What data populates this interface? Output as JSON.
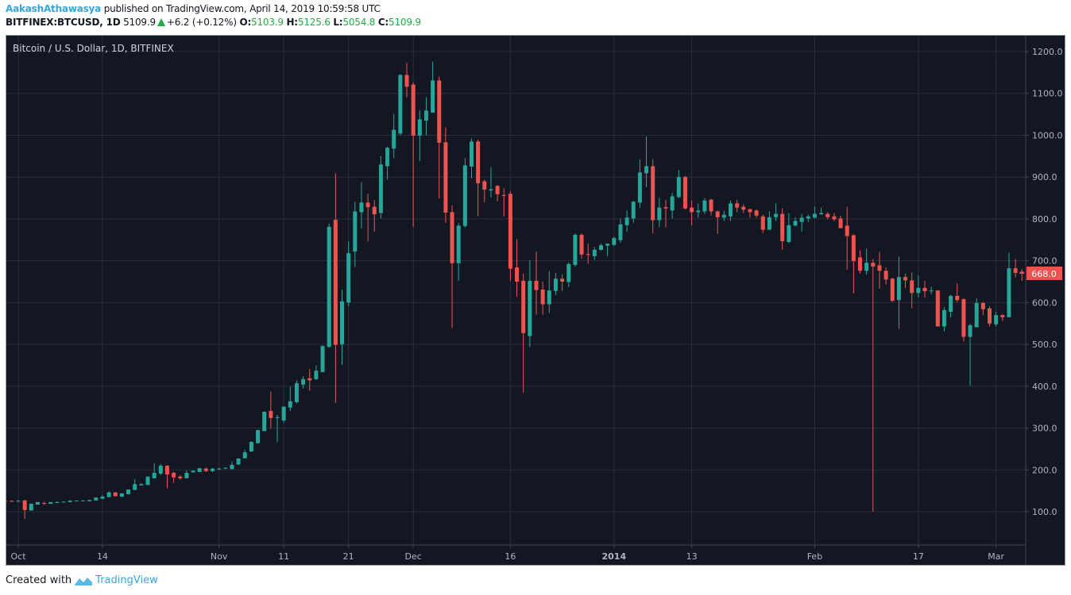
{
  "header": {
    "author": "AakashAthawasya",
    "published": "published on TradingView.com, April 14, 2019 10:59:58 UTC",
    "symbol": "BITFINEX:BTCUSD, 1D",
    "last": "5109.9",
    "change": "+6.2 (+0.12%)",
    "o_label": "O:",
    "o": "5103.9",
    "h_label": "H:",
    "h": "5125.6",
    "l_label": "L:",
    "l": "5054.8",
    "c_label": "C:",
    "c": "5109.9"
  },
  "footer": {
    "created_with": "Created with",
    "brand": "TradingView"
  },
  "colors": {
    "background": "#131722",
    "grid": "#2a2e39",
    "up": "#26a69a",
    "down": "#ef5350",
    "axis_text": "#b2b5be",
    "brand": "#3aa4dc"
  },
  "chart_data": {
    "type": "candlestick",
    "title": "Bitcoin / U.S. Dollar, 1D, BITFINEX",
    "ylim": [
      0,
      1250
    ],
    "yticks": [
      "100.0",
      "200.0",
      "300.0",
      "400.0",
      "500.0",
      "600.0",
      "700.0",
      "800.0",
      "900.0",
      "1000.0",
      "1100.0",
      "1200.0"
    ],
    "last_price_label": "668.0",
    "xticks": [
      {
        "label": "Oct",
        "date": "2013-10-01"
      },
      {
        "label": "14",
        "date": "2013-10-14"
      },
      {
        "label": "Nov",
        "date": "2013-11-01"
      },
      {
        "label": "11",
        "date": "2013-11-11"
      },
      {
        "label": "21",
        "date": "2013-11-21"
      },
      {
        "label": "Dec",
        "date": "2013-12-01"
      },
      {
        "label": "16",
        "date": "2013-12-16"
      },
      {
        "label": "2014",
        "date": "2014-01-01",
        "bold": true
      },
      {
        "label": "13",
        "date": "2014-01-13"
      },
      {
        "label": "Feb",
        "date": "2014-02-01"
      },
      {
        "label": "17",
        "date": "2014-02-17"
      },
      {
        "label": "Mar",
        "date": "2014-03-01"
      }
    ],
    "columns": [
      "date",
      "open",
      "high",
      "low",
      "close"
    ],
    "candles": [
      [
        "2013-09-29",
        126,
        127,
        125,
        125
      ],
      [
        "2013-09-30",
        126,
        126,
        123,
        125
      ],
      [
        "2013-10-01",
        125,
        128,
        124,
        126
      ],
      [
        "2013-10-02",
        127,
        128,
        83,
        104
      ],
      [
        "2013-10-03",
        103,
        119,
        103,
        119
      ],
      [
        "2013-10-04",
        117,
        123,
        117,
        123
      ],
      [
        "2013-10-05",
        121,
        125,
        116,
        120.5
      ],
      [
        "2013-10-06",
        119,
        123,
        119,
        123
      ],
      [
        "2013-10-07",
        121,
        125,
        121,
        123
      ],
      [
        "2013-10-08",
        123,
        124,
        122,
        124
      ],
      [
        "2013-10-09",
        123,
        128,
        123,
        126
      ],
      [
        "2013-10-10",
        126,
        127,
        125,
        126.5
      ],
      [
        "2013-10-11",
        126,
        127,
        125,
        127
      ],
      [
        "2013-10-12",
        125,
        128,
        125,
        128
      ],
      [
        "2013-10-13",
        127,
        134,
        127,
        134
      ],
      [
        "2013-10-14",
        131,
        140,
        131,
        136
      ],
      [
        "2013-10-15",
        135,
        149,
        135,
        146
      ],
      [
        "2013-10-16",
        146,
        147,
        137,
        137
      ],
      [
        "2013-10-17",
        136,
        144,
        135,
        144
      ],
      [
        "2013-10-18",
        142,
        153,
        142,
        153
      ],
      [
        "2013-10-19",
        152,
        178,
        152,
        166
      ],
      [
        "2013-10-20",
        163,
        168,
        163,
        166
      ],
      [
        "2013-10-21",
        164,
        184,
        164,
        184
      ],
      [
        "2013-10-22",
        180,
        216,
        180,
        193
      ],
      [
        "2013-10-23",
        191,
        214,
        188,
        210
      ],
      [
        "2013-10-24",
        210,
        211,
        156,
        189
      ],
      [
        "2013-10-25",
        193,
        195,
        169,
        182
      ],
      [
        "2013-10-26",
        184,
        187,
        177,
        180
      ],
      [
        "2013-10-27",
        180,
        199,
        180,
        193
      ],
      [
        "2013-10-28",
        194,
        199,
        194,
        198
      ],
      [
        "2013-10-29",
        195,
        204,
        195,
        204
      ],
      [
        "2013-10-30",
        203,
        206,
        195,
        197
      ],
      [
        "2013-10-31",
        197,
        205,
        195,
        203
      ],
      [
        "2013-11-01",
        201,
        205,
        201,
        203
      ],
      [
        "2013-11-02",
        203,
        206,
        202,
        205
      ],
      [
        "2013-11-03",
        202,
        220,
        201,
        212
      ],
      [
        "2013-11-04",
        213,
        228,
        212,
        227
      ],
      [
        "2013-11-05",
        228,
        248,
        227,
        242
      ],
      [
        "2013-11-06",
        244,
        268,
        243,
        267
      ],
      [
        "2013-11-07",
        264,
        296,
        263,
        295
      ],
      [
        "2013-11-08",
        293,
        340,
        292,
        339
      ],
      [
        "2013-11-09",
        341,
        387,
        298,
        324
      ],
      [
        "2013-11-10",
        325,
        332,
        266,
        326
      ],
      [
        "2013-11-11",
        318,
        353,
        312,
        351
      ],
      [
        "2013-11-12",
        349,
        399,
        341,
        364
      ],
      [
        "2013-11-13",
        362,
        414,
        359,
        407
      ],
      [
        "2013-11-14",
        404,
        424,
        395,
        417
      ],
      [
        "2013-11-15",
        419,
        441,
        389,
        414
      ],
      [
        "2013-11-16",
        417,
        450,
        415,
        437
      ],
      [
        "2013-11-17",
        434,
        498,
        433,
        496
      ],
      [
        "2013-11-18",
        494,
        789,
        492,
        781
      ],
      [
        "2013-11-19",
        798,
        909,
        360,
        499
      ],
      [
        "2013-11-20",
        500,
        631,
        451,
        603
      ],
      [
        "2013-11-21",
        600,
        746,
        591,
        718
      ],
      [
        "2013-11-22",
        722,
        841,
        685,
        818
      ],
      [
        "2013-11-23",
        816,
        888,
        777,
        839
      ],
      [
        "2013-11-24",
        839,
        860,
        746,
        828
      ],
      [
        "2013-11-25",
        829,
        845,
        770,
        811
      ],
      [
        "2013-11-26",
        814,
        950,
        801,
        930
      ],
      [
        "2013-11-27",
        926,
        972,
        894,
        970
      ],
      [
        "2013-11-28",
        968,
        1051,
        945,
        1013
      ],
      [
        "2013-11-29",
        1004,
        1146,
        1000,
        1144
      ],
      [
        "2013-11-30",
        1144,
        1173,
        1091,
        1116
      ],
      [
        "2013-12-01",
        1121,
        1127,
        781,
        999
      ],
      [
        "2013-12-02",
        999,
        1060,
        938,
        1038
      ],
      [
        "2013-12-03",
        1035,
        1091,
        1000,
        1059
      ],
      [
        "2013-12-04",
        1054,
        1176,
        1054,
        1131
      ],
      [
        "2013-12-05",
        1131,
        1140,
        849,
        982
      ],
      [
        "2013-12-06",
        983,
        1019,
        791,
        815
      ],
      [
        "2013-12-07",
        816,
        832,
        539,
        694
      ],
      [
        "2013-12-08",
        694,
        790,
        652,
        784
      ],
      [
        "2013-12-09",
        783,
        945,
        779,
        928
      ],
      [
        "2013-12-10",
        925,
        992,
        897,
        985
      ],
      [
        "2013-12-11",
        985,
        990,
        806,
        885
      ],
      [
        "2013-12-12",
        890,
        894,
        840,
        870
      ],
      [
        "2013-12-13",
        868,
        924,
        851,
        871
      ],
      [
        "2013-12-14",
        879,
        881,
        842,
        859
      ],
      [
        "2013-12-15",
        857,
        873,
        806,
        855
      ],
      [
        "2013-12-16",
        860,
        866,
        652,
        681
      ],
      [
        "2013-12-17",
        684,
        752,
        614,
        650
      ],
      [
        "2013-12-18",
        652,
        669,
        384,
        527
      ],
      [
        "2013-12-19",
        520,
        701,
        493,
        652
      ],
      [
        "2013-12-20",
        652,
        722,
        571,
        630
      ],
      [
        "2013-12-21",
        631,
        650,
        571,
        596
      ],
      [
        "2013-12-22",
        596,
        675,
        575,
        629
      ],
      [
        "2013-12-23",
        628,
        671,
        618,
        657
      ],
      [
        "2013-12-24",
        657,
        667,
        628,
        650
      ],
      [
        "2013-12-25",
        649,
        696,
        637,
        692
      ],
      [
        "2013-12-26",
        690,
        765,
        686,
        762
      ],
      [
        "2013-12-27",
        762,
        765,
        705,
        715
      ],
      [
        "2013-12-28",
        716,
        741,
        692,
        714
      ],
      [
        "2013-12-29",
        711,
        733,
        702,
        726
      ],
      [
        "2013-12-30",
        726,
        741,
        724,
        737
      ],
      [
        "2013-12-31",
        736,
        741,
        711,
        741
      ],
      [
        "2014-01-01",
        738,
        758,
        735,
        754
      ],
      [
        "2014-01-02",
        749,
        801,
        743,
        787
      ],
      [
        "2014-01-03",
        785,
        820,
        769,
        803
      ],
      [
        "2014-01-04",
        801,
        843,
        791,
        841
      ],
      [
        "2014-01-05",
        839,
        942,
        826,
        911
      ],
      [
        "2014-01-06",
        909,
        997,
        876,
        926
      ],
      [
        "2014-01-07",
        926,
        943,
        765,
        797
      ],
      [
        "2014-01-08",
        797,
        850,
        780,
        827
      ],
      [
        "2014-01-09",
        828,
        846,
        780,
        825
      ],
      [
        "2014-01-10",
        820,
        862,
        801,
        854
      ],
      [
        "2014-01-11",
        852,
        917,
        850,
        900
      ],
      [
        "2014-01-12",
        900,
        903,
        822,
        825
      ],
      [
        "2014-01-13",
        827,
        844,
        784,
        816
      ],
      [
        "2014-01-14",
        816,
        837,
        803,
        820
      ],
      [
        "2014-01-15",
        818,
        850,
        812,
        844
      ],
      [
        "2014-01-16",
        846,
        848,
        808,
        818
      ],
      [
        "2014-01-17",
        818,
        820,
        764,
        804
      ],
      [
        "2014-01-18",
        803,
        820,
        795,
        810
      ],
      [
        "2014-01-19",
        806,
        844,
        795,
        837
      ],
      [
        "2014-01-20",
        837,
        846,
        816,
        827
      ],
      [
        "2014-01-21",
        829,
        835,
        814,
        822
      ],
      [
        "2014-01-22",
        823,
        825,
        803,
        816
      ],
      [
        "2014-01-23",
        820,
        823,
        803,
        808
      ],
      [
        "2014-01-24",
        806,
        810,
        766,
        774
      ],
      [
        "2014-01-25",
        774,
        818,
        774,
        804
      ],
      [
        "2014-01-26",
        804,
        837,
        795,
        812
      ],
      [
        "2014-01-27",
        812,
        825,
        726,
        747
      ],
      [
        "2014-01-28",
        745,
        814,
        742,
        785
      ],
      [
        "2014-01-29",
        784,
        804,
        782,
        795
      ],
      [
        "2014-01-30",
        793,
        812,
        770,
        803
      ],
      [
        "2014-01-31",
        801,
        810,
        793,
        806
      ],
      [
        "2014-02-01",
        803,
        829,
        801,
        812
      ],
      [
        "2014-02-02",
        811,
        827,
        810,
        814
      ],
      [
        "2014-02-03",
        812,
        816,
        799,
        804
      ],
      [
        "2014-02-04",
        806,
        814,
        795,
        799
      ],
      [
        "2014-02-05",
        801,
        808,
        777,
        778
      ],
      [
        "2014-02-06",
        784,
        829,
        679,
        759
      ],
      [
        "2014-02-07",
        761,
        763,
        622,
        699
      ],
      [
        "2014-02-08",
        708,
        725,
        669,
        676
      ],
      [
        "2014-02-09",
        676,
        729,
        667,
        695
      ],
      [
        "2014-02-10",
        695,
        704,
        100,
        686
      ],
      [
        "2014-02-11",
        689,
        721,
        633,
        676
      ],
      [
        "2014-02-12",
        676,
        684,
        643,
        655
      ],
      [
        "2014-02-13",
        657,
        659,
        602,
        604
      ],
      [
        "2014-02-14",
        606,
        710,
        537,
        661
      ],
      [
        "2014-02-15",
        661,
        669,
        635,
        653
      ],
      [
        "2014-02-16",
        653,
        672,
        586,
        623
      ],
      [
        "2014-02-17",
        623,
        665,
        612,
        635
      ],
      [
        "2014-02-18",
        635,
        652,
        612,
        627
      ],
      [
        "2014-02-19",
        627,
        638,
        620,
        629
      ],
      [
        "2014-02-20",
        629,
        629,
        543,
        543
      ],
      [
        "2014-02-21",
        543,
        589,
        531,
        582
      ],
      [
        "2014-02-22",
        578,
        619,
        564,
        616
      ],
      [
        "2014-02-23",
        616,
        646,
        601,
        606
      ],
      [
        "2014-02-24",
        608,
        610,
        507,
        518
      ],
      [
        "2014-02-25",
        518,
        550,
        401,
        546
      ],
      [
        "2014-02-26",
        541,
        610,
        541,
        599
      ],
      [
        "2014-02-27",
        599,
        601,
        570,
        584
      ],
      [
        "2014-02-28",
        586,
        591,
        543,
        550
      ],
      [
        "2014-03-01",
        548,
        578,
        543,
        570
      ],
      [
        "2014-03-02",
        570,
        572,
        556,
        565
      ],
      [
        "2014-03-03",
        565,
        719,
        565,
        682
      ],
      [
        "2014-03-04",
        682,
        704,
        660,
        671
      ],
      [
        "2014-03-05",
        674,
        680,
        652,
        669
      ],
      [
        "2014-03-06",
        670,
        670,
        667,
        668
      ]
    ]
  }
}
